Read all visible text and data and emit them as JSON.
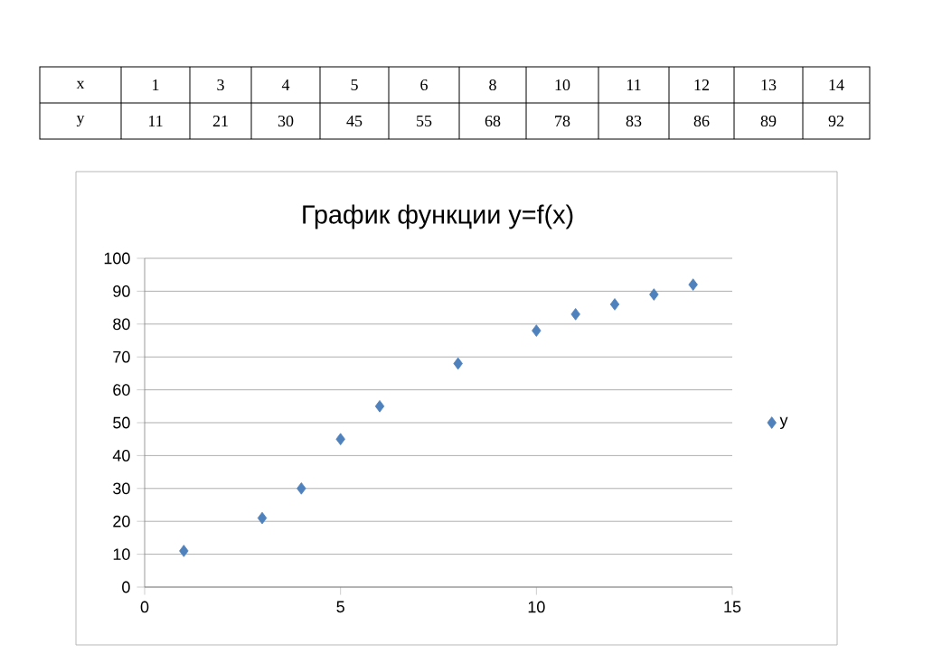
{
  "chart_data": {
    "type": "scatter",
    "title": "График функции y=f(x)",
    "x": [
      1,
      3,
      4,
      5,
      6,
      8,
      10,
      11,
      12,
      13,
      14
    ],
    "series": [
      {
        "name": "y",
        "color": "#4f81bd",
        "values": [
          11,
          21,
          30,
          45,
          55,
          68,
          78,
          83,
          86,
          89,
          92
        ]
      }
    ],
    "xlim": [
      0,
      15
    ],
    "xticks": [
      0,
      5,
      10,
      15
    ],
    "ylim": [
      0,
      100
    ],
    "yticks": [
      0,
      10,
      20,
      30,
      40,
      50,
      60,
      70,
      80,
      90,
      100
    ],
    "grid": "y",
    "legend": "right",
    "marker": "diamond",
    "annotations": [
      "x",
      "1",
      "3",
      "4",
      "5",
      "6",
      "8",
      "10",
      "11",
      "12",
      "13",
      "14",
      "y",
      "11",
      "21",
      "30",
      "45",
      "55",
      "68",
      "78",
      "83",
      "86",
      "89",
      "92"
    ]
  }
}
